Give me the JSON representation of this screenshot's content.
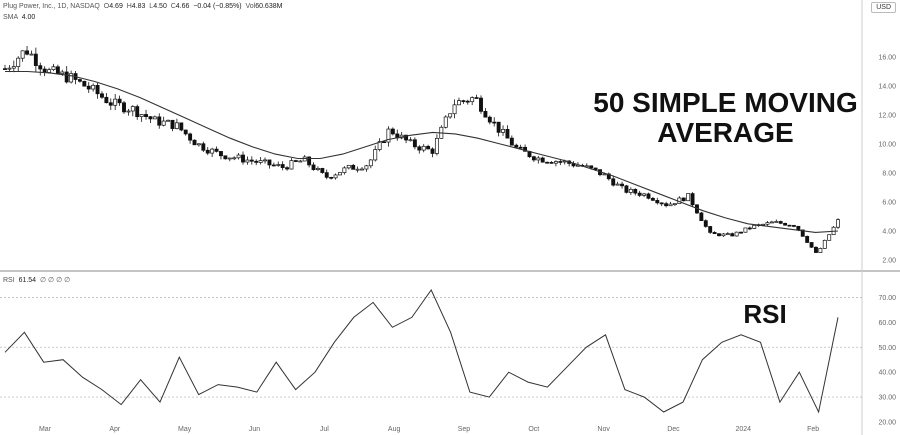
{
  "header": {
    "symbol": "Plug Power, Inc., 1D, NASDAQ",
    "open": "4.69",
    "high": "4.83",
    "low": "4.50",
    "close": "4.66",
    "change": "−0.04 (−0.85%)",
    "volume": "60.638M",
    "sma_label": "SMA",
    "sma_value": "4.00",
    "currency": "USD"
  },
  "rsi_legend": {
    "label": "RSI",
    "value": "61.54",
    "dots": "∅ ∅ ∅ ∅"
  },
  "annotations": {
    "sma_line1": "50 SIMPLE MOVING",
    "sma_line2": "AVERAGE",
    "rsi": "RSI"
  },
  "colors": {
    "up": "#ffffff",
    "down": "#111111",
    "line": "#333333",
    "grid": "#d9d9d9"
  },
  "chart_data": [
    {
      "type": "candlestick",
      "title": "",
      "x_labels": [
        "Mar",
        "Apr",
        "May",
        "Jun",
        "Jul",
        "Aug",
        "Sep",
        "Oct",
        "Nov",
        "Dec",
        "2024",
        "Feb"
      ],
      "ylim": [
        2,
        18
      ],
      "y_ticks": [
        "2.00",
        "4.00",
        "6.00",
        "8.00",
        "10.00",
        "12.00",
        "14.00",
        "16.00"
      ],
      "series": [
        {
          "name": "SMA",
          "type": "line",
          "values": [
            15.0,
            15.0,
            14.9,
            14.7,
            14.3,
            13.8,
            13.2,
            12.5,
            11.8,
            11.1,
            10.4,
            9.8,
            9.3,
            9.0,
            9.0,
            9.3,
            9.8,
            10.3,
            10.6,
            10.8,
            10.7,
            10.4,
            10.0,
            9.6,
            9.2,
            8.8,
            8.3,
            7.8,
            7.2,
            6.6,
            6.0,
            5.4,
            4.9,
            4.5,
            4.3,
            4.1,
            3.9,
            4.0
          ]
        },
        {
          "name": "Price",
          "type": "candlestick",
          "close": [
            15.2,
            16.5,
            15.0,
            14.6,
            13.8,
            12.8,
            12.4,
            11.6,
            11.3,
            10.0,
            9.3,
            9.0,
            8.7,
            8.4,
            8.9,
            7.7,
            8.3,
            8.6,
            11.0,
            10.0,
            9.5,
            12.8,
            13.2,
            11.2,
            9.6,
            9.0,
            8.8,
            8.5,
            7.9,
            6.8,
            6.5,
            5.8,
            6.4,
            3.8,
            3.7,
            4.3,
            4.6,
            4.4,
            2.4,
            4.7
          ]
        }
      ]
    },
    {
      "type": "line",
      "title": "RSI",
      "ylim": [
        20,
        75
      ],
      "y_ticks": [
        "20.00",
        "30.00",
        "40.00",
        "50.00",
        "60.00",
        "70.00"
      ],
      "values": [
        48,
        56,
        44,
        45,
        38,
        33,
        27,
        37,
        28,
        46,
        31,
        35,
        34,
        32,
        44,
        33,
        40,
        52,
        62,
        68,
        58,
        62,
        73,
        56,
        32,
        30,
        40,
        36,
        34,
        42,
        50,
        55,
        33,
        30,
        24,
        28,
        45,
        52,
        55,
        52,
        28,
        40,
        24,
        62
      ]
    }
  ]
}
